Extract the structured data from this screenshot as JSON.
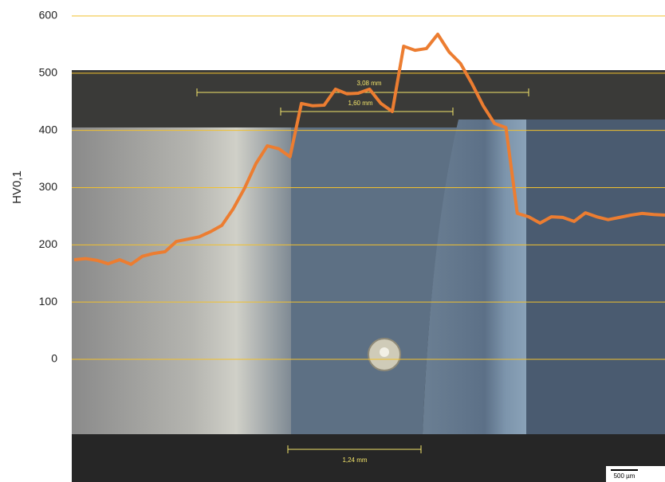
{
  "chart_data": {
    "type": "line",
    "y_label": "HV0,1",
    "ylim": [
      0,
      600
    ],
    "yticks": [
      0,
      100,
      200,
      300,
      400,
      500,
      600
    ],
    "grid": true,
    "grid_color": "#f2c12e",
    "series": [
      {
        "name": null,
        "color": "#ec7d31",
        "values": [
          174,
          176,
          173,
          167,
          174,
          166,
          180,
          185,
          188,
          206,
          210,
          214,
          223,
          234,
          263,
          299,
          342,
          373,
          368,
          354,
          447,
          443,
          444,
          472,
          464,
          465,
          472,
          447,
          433,
          547,
          540,
          543,
          568,
          537,
          517,
          482,
          443,
          412,
          405,
          255,
          249,
          238,
          249,
          248,
          241,
          256,
          249,
          244,
          248,
          252,
          255,
          253,
          252
        ]
      }
    ],
    "annotations": [
      "3,08 mm",
      "1,60 mm",
      "1,24 mm",
      "500 µm"
    ]
  }
}
